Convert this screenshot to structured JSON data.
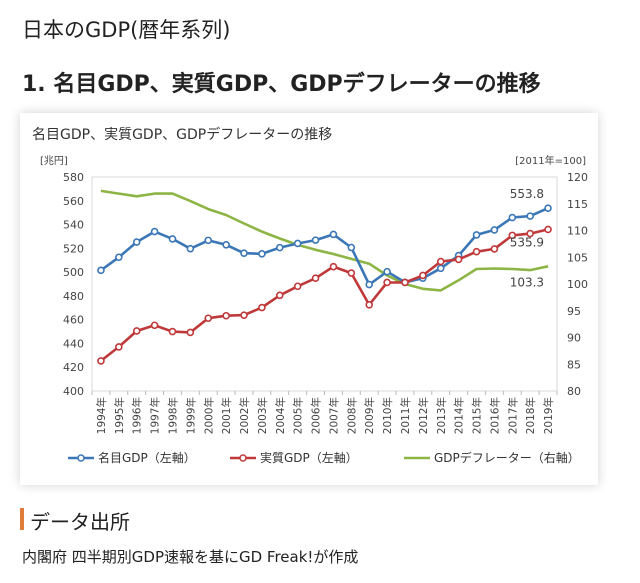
{
  "page": {
    "title": "日本のGDP(暦年系列)",
    "section_title": "1. 名目GDP、実質GDP、GDPデフレーターの推移",
    "source_heading": "データ出所",
    "source_text": "内閣府 四半期別GDP速報を基にGD Freak!が作成"
  },
  "colors": {
    "nominal": "#3b77b6",
    "real": "#c0393a",
    "deflator": "#8db545",
    "accent": "#e07b39"
  },
  "chart_data": {
    "type": "line",
    "title": "名目GDP、実質GDP、GDPデフレーターの推移",
    "left_unit": "[兆円]",
    "right_unit": "[2011年=100]",
    "categories": [
      "1994年",
      "1995年",
      "1996年",
      "1997年",
      "1998年",
      "1999年",
      "2000年",
      "2001年",
      "2002年",
      "2003年",
      "2004年",
      "2005年",
      "2006年",
      "2007年",
      "2008年",
      "2009年",
      "2010年",
      "2011年",
      "2012年",
      "2013年",
      "2014年",
      "2015年",
      "2016年",
      "2017年",
      "2018年",
      "2019年"
    ],
    "y_left": {
      "min": 400,
      "max": 580,
      "ticks": [
        400,
        420,
        440,
        460,
        480,
        500,
        520,
        540,
        560,
        580
      ]
    },
    "y_right": {
      "min": 80,
      "max": 120,
      "ticks": [
        80,
        85,
        90,
        95,
        100,
        105,
        110,
        115,
        120
      ]
    },
    "series": [
      {
        "name": "名目GDP（左軸）",
        "axis": "left",
        "color_key": "nominal",
        "markers": true,
        "values": [
          501.5,
          512.5,
          525.3,
          534.1,
          527.9,
          519.7,
          526.7,
          523.0,
          515.9,
          515.4,
          520.6,
          524.1,
          526.9,
          531.7,
          520.7,
          489.5,
          500.4,
          491.4,
          494.9,
          503.2,
          513.9,
          531.3,
          535.5,
          545.9,
          547.1,
          553.8
        ]
      },
      {
        "name": "実質GDP（左軸）",
        "axis": "left",
        "color_key": "real",
        "markers": true,
        "values": [
          425.3,
          437.1,
          450.5,
          455.3,
          450.0,
          449.3,
          461.2,
          463.3,
          463.8,
          470.2,
          480.5,
          488.1,
          494.9,
          504.6,
          499.2,
          472.5,
          491.3,
          491.3,
          497.2,
          508.9,
          510.7,
          517.2,
          519.5,
          530.9,
          532.4,
          535.9
        ]
      },
      {
        "name": "GDPデフレーター（右軸）",
        "axis": "right",
        "color_key": "deflator",
        "markers": false,
        "values": [
          117.4,
          116.9,
          116.4,
          116.9,
          116.9,
          115.5,
          114.0,
          112.9,
          111.3,
          109.8,
          108.5,
          107.3,
          106.4,
          105.6,
          104.7,
          103.8,
          101.6,
          100.0,
          99.1,
          98.8,
          100.7,
          102.8,
          102.9,
          102.8,
          102.6,
          103.3
        ]
      }
    ],
    "labels": {
      "nominal_last": "553.8",
      "real_last": "535.9",
      "deflator_last": "103.3"
    },
    "legend": [
      "名目GDP（左軸）",
      "実質GDP（左軸）",
      "GDPデフレーター（右軸）"
    ]
  }
}
